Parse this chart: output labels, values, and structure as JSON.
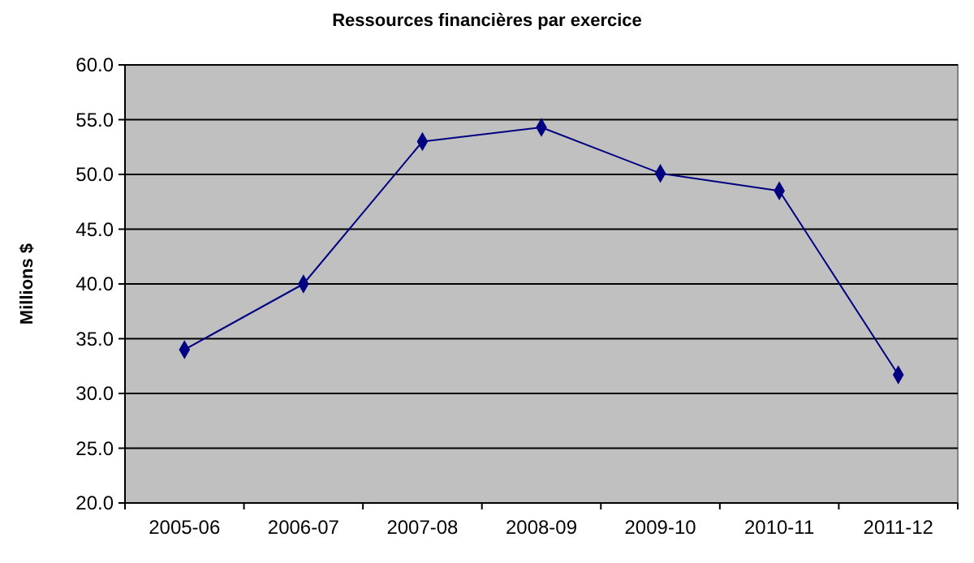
{
  "chart_data": {
    "type": "line",
    "title": "Ressources financières par exercice",
    "ylabel": "Millions $",
    "categories": [
      "2005-06",
      "2006-07",
      "2007-08",
      "2008-09",
      "2009-10",
      "2010-11",
      "2011-12"
    ],
    "series": [
      {
        "color": "#000080",
        "values": [
          34.0,
          40.0,
          53.0,
          54.3,
          50.1,
          48.5,
          31.7
        ]
      }
    ],
    "ylim": [
      20,
      60
    ],
    "yticks": [
      {
        "value": 20,
        "label": "20.0"
      },
      {
        "value": 25,
        "label": "25.0"
      },
      {
        "value": 30,
        "label": "30.0"
      },
      {
        "value": 35,
        "label": "35.0"
      },
      {
        "value": 40,
        "label": "40.0"
      },
      {
        "value": 45,
        "label": "45.0"
      },
      {
        "value": 50,
        "label": "50.0"
      },
      {
        "value": 55,
        "label": "55.0"
      },
      {
        "value": 60,
        "label": "60.0"
      }
    ],
    "grid": "y",
    "marker": "diamond"
  }
}
